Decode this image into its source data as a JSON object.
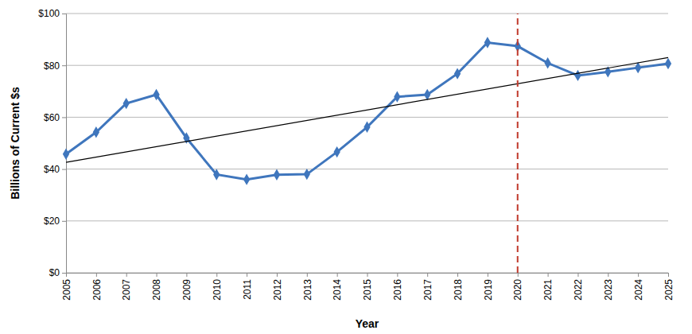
{
  "chart_data": {
    "type": "line",
    "x_label": "Year",
    "y_label": "Billions of Current $s",
    "x": [
      2005,
      2006,
      2007,
      2008,
      2009,
      2010,
      2011,
      2012,
      2013,
      2014,
      2015,
      2016,
      2017,
      2018,
      2019,
      2020,
      2021,
      2022,
      2023,
      2024,
      2025
    ],
    "series": [
      {
        "color": "#3f76bd",
        "marker": "diamond",
        "line_style": "solid",
        "values": [
          45.8,
          54.2,
          65.3,
          68.7,
          52.0,
          37.9,
          36.0,
          37.8,
          38.0,
          46.6,
          56.2,
          67.9,
          68.7,
          76.8,
          88.8,
          87.4,
          80.9,
          76.1,
          77.5,
          79.1,
          80.7
        ]
      },
      {
        "color": "#000000",
        "marker": "none",
        "line_style": "solid",
        "x": [
          2005,
          2025
        ],
        "values": [
          42.6,
          83.0
        ]
      }
    ],
    "annotations": [
      {
        "x": 2020,
        "color": "#c0392b",
        "line_style": "dashed"
      }
    ],
    "xlim": [
      2005,
      2025
    ],
    "xticks": [
      2005,
      2006,
      2007,
      2008,
      2009,
      2010,
      2011,
      2012,
      2013,
      2014,
      2015,
      2016,
      2017,
      2018,
      2019,
      2020,
      2021,
      2022,
      2023,
      2024,
      2025
    ],
    "ylim": [
      0,
      100
    ],
    "yticks": [
      {
        "value": 0,
        "label": "$0"
      },
      {
        "value": 20,
        "label": "$20"
      },
      {
        "value": 40,
        "label": "$40"
      },
      {
        "value": 60,
        "label": "$60"
      },
      {
        "value": 80,
        "label": "$80"
      },
      {
        "value": 100,
        "label": "$100"
      }
    ],
    "grid": true
  }
}
